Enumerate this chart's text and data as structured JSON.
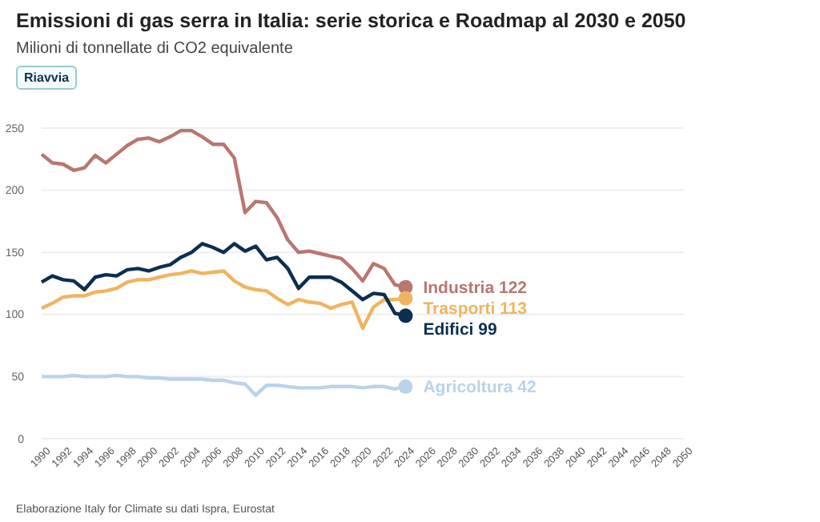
{
  "chart_data": {
    "type": "line",
    "title": "Emissioni di gas serra in Italia: serie storica e Roadmap al 2030 e 2050",
    "subtitle": "Milioni di tonnellate di CO2 equivalente",
    "x": [
      1990,
      1991,
      1992,
      1993,
      1994,
      1995,
      1996,
      1997,
      1998,
      1999,
      2000,
      2001,
      2002,
      2003,
      2004,
      2005,
      2006,
      2007,
      2008,
      2009,
      2010,
      2011,
      2012,
      2013,
      2014,
      2015,
      2016,
      2017,
      2018,
      2019,
      2020,
      2021,
      2022,
      2023,
      2024
    ],
    "series": [
      {
        "name": "Industria",
        "color": "#b87770",
        "values": [
          229,
          222,
          221,
          216,
          218,
          228,
          222,
          229,
          236,
          241,
          242,
          239,
          243,
          248,
          248,
          243,
          237,
          237,
          226,
          182,
          191,
          190,
          178,
          160,
          150,
          151,
          149,
          147,
          145,
          137,
          127,
          141,
          137,
          124,
          122
        ],
        "value_labels": [
          null,
          null,
          null,
          null,
          null,
          null,
          null,
          null,
          null,
          null,
          null,
          null,
          null,
          null,
          null,
          null,
          null,
          null,
          null,
          null,
          null,
          null,
          null,
          null,
          null,
          null,
          null,
          null,
          null,
          null,
          null,
          null,
          null,
          null,
          "122"
        ]
      },
      {
        "name": "Trasporti",
        "color": "#f0b460",
        "values": [
          105,
          109,
          114,
          115,
          115,
          118,
          119,
          121,
          126,
          128,
          128,
          130,
          132,
          133,
          135,
          133,
          134,
          135,
          127,
          122,
          120,
          119,
          113,
          108,
          112,
          110,
          109,
          105,
          108,
          110,
          89,
          106,
          112,
          112,
          113
        ],
        "value_labels": [
          null,
          null,
          null,
          null,
          null,
          null,
          null,
          null,
          null,
          null,
          null,
          null,
          null,
          null,
          null,
          null,
          null,
          null,
          null,
          null,
          null,
          null,
          null,
          null,
          null,
          null,
          null,
          null,
          null,
          null,
          null,
          null,
          null,
          null,
          "113"
        ]
      },
      {
        "name": "Edifici",
        "color": "#0d2f4f",
        "values": [
          126,
          131,
          128,
          127,
          120,
          130,
          132,
          131,
          136,
          137,
          135,
          138,
          140,
          146,
          150,
          157,
          154,
          150,
          157,
          151,
          155,
          144,
          146,
          137,
          121,
          130,
          130,
          130,
          126,
          119,
          112,
          117,
          116,
          101,
          99
        ],
        "value_labels": [
          null,
          null,
          null,
          null,
          null,
          null,
          null,
          null,
          null,
          null,
          null,
          null,
          null,
          null,
          null,
          null,
          null,
          null,
          null,
          null,
          null,
          null,
          null,
          null,
          null,
          null,
          null,
          null,
          null,
          null,
          null,
          null,
          null,
          null,
          "99"
        ]
      },
      {
        "name": "Agricoltura",
        "color": "#b9d3ea",
        "values": [
          50,
          50,
          50,
          51,
          50,
          50,
          50,
          51,
          50,
          50,
          49,
          49,
          48,
          48,
          48,
          48,
          47,
          47,
          45,
          44,
          35,
          43,
          43,
          42,
          41,
          41,
          41,
          42,
          42,
          42,
          41,
          42,
          42,
          40,
          42
        ],
        "value_labels": [
          null,
          null,
          null,
          null,
          null,
          null,
          null,
          null,
          null,
          null,
          null,
          null,
          null,
          null,
          null,
          null,
          null,
          null,
          null,
          null,
          null,
          null,
          null,
          null,
          null,
          null,
          null,
          null,
          null,
          null,
          null,
          null,
          null,
          null,
          "42"
        ]
      }
    ],
    "xlim": [
      1990,
      2050
    ],
    "xticks": [
      1990,
      1992,
      1994,
      1996,
      1998,
      2000,
      2002,
      2004,
      2006,
      2008,
      2010,
      2012,
      2014,
      2016,
      2018,
      2020,
      2022,
      2024,
      2026,
      2028,
      2030,
      2032,
      2034,
      2036,
      2038,
      2040,
      2042,
      2044,
      2046,
      2048,
      2050
    ],
    "ylim": [
      0,
      250
    ],
    "yticks": [
      0,
      50,
      100,
      150,
      200,
      250
    ],
    "grid": "y",
    "legend": false,
    "annotations": [
      "Riavvia",
      "Elaborazione Italy for Climate su dati Ispra, Eurostat"
    ]
  }
}
